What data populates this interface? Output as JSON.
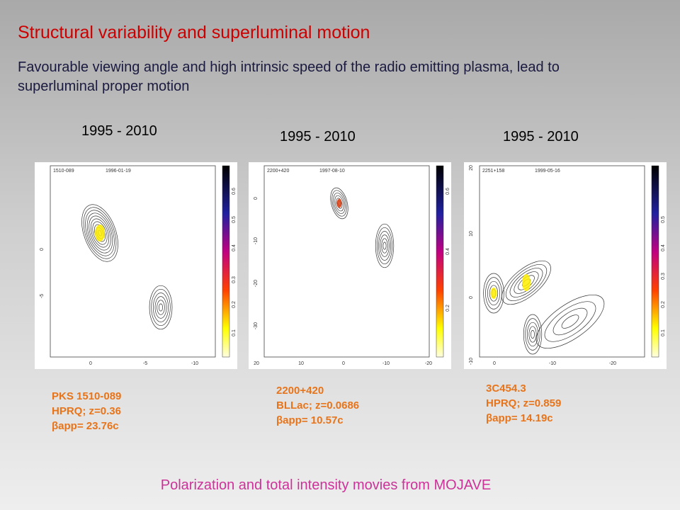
{
  "title": "Structural variability and superluminal motion",
  "subtitle": "Favourable viewing angle and high intrinsic speed of the radio emitting plasma, lead to superluminal proper motion",
  "panels": [
    {
      "period": "1995 - 2010",
      "source": "1510-089",
      "date": "1996-01-19",
      "y_ticks": [
        "0",
        "-5"
      ],
      "x_ticks": [
        "0",
        "-5",
        "-10"
      ],
      "colorbar_ticks": [
        "0.6",
        "0.5",
        "0.4",
        "0.3",
        "0.2",
        "0.1"
      ],
      "caption": [
        "PKS 1510-089",
        "HPRQ; z=0.36",
        "βapp= 23.76c"
      ]
    },
    {
      "period": "1995 - 2010",
      "source": "2200+420",
      "date": "1997-08-10",
      "y_ticks": [
        "0",
        "-10",
        "-20",
        "-30"
      ],
      "x_ticks": [
        "20",
        "10",
        "0",
        "-10",
        "-20"
      ],
      "colorbar_ticks": [
        "0.6",
        "0.4",
        "0.2"
      ],
      "caption": [
        "2200+420",
        "BLLac; z=0.0686",
        "βapp= 10.57c"
      ]
    },
    {
      "period": "1995 - 2010",
      "source": "2251+158",
      "date": "1999-05-16",
      "y_ticks": [
        "20",
        "10",
        "0",
        "-10"
      ],
      "x_ticks": [
        "0",
        "-10",
        "-20"
      ],
      "colorbar_ticks": [
        "0.5",
        "0.4",
        "0.3",
        "0.2",
        "0.1"
      ],
      "caption": [
        "3C454.3",
        "HPRQ; z=0.859",
        "βapp= 14.19c"
      ]
    }
  ],
  "footer": "Polarization and total intensity movies from MOJAVE"
}
